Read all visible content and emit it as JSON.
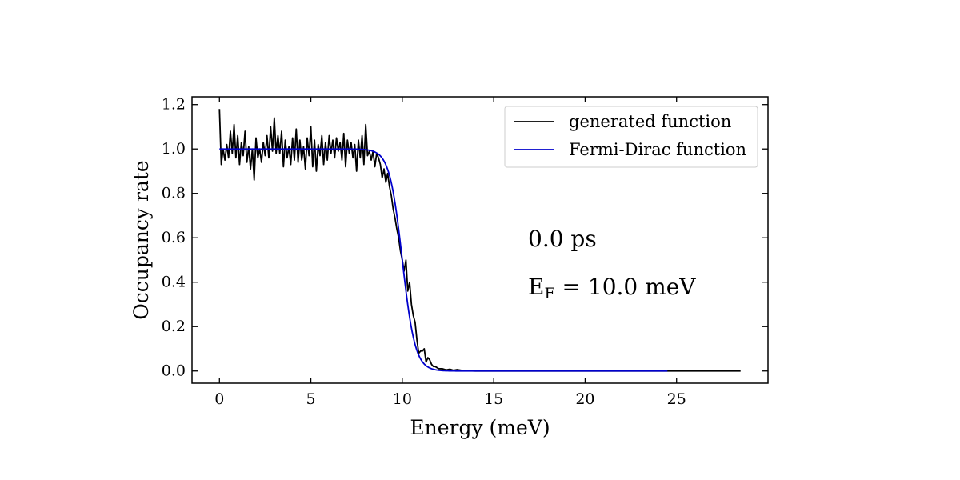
{
  "chart_data": {
    "type": "line",
    "title": "",
    "xlabel": "Energy (meV)",
    "ylabel": "Occupancy rate",
    "xlim": [
      -1.5,
      30
    ],
    "ylim": [
      -0.055,
      1.235
    ],
    "xticks": [
      0,
      5,
      10,
      15,
      20,
      25
    ],
    "yticks": [
      0.0,
      0.2,
      0.4,
      0.6,
      0.8,
      1.0,
      1.2
    ],
    "xtick_labels": [
      "0",
      "5",
      "10",
      "15",
      "20",
      "25"
    ],
    "ytick_labels": [
      "0.0",
      "0.2",
      "0.4",
      "0.6",
      "0.8",
      "1.0",
      "1.2"
    ],
    "grid": false,
    "legend_position": "top-right",
    "series": [
      {
        "name": "generated function",
        "color": "#000000",
        "points": [
          [
            0.0,
            1.18
          ],
          [
            0.1,
            0.93
          ],
          [
            0.2,
            1.0
          ],
          [
            0.3,
            0.95
          ],
          [
            0.4,
            1.02
          ],
          [
            0.5,
            0.96
          ],
          [
            0.6,
            1.08
          ],
          [
            0.7,
            0.98
          ],
          [
            0.8,
            1.11
          ],
          [
            0.9,
            0.96
          ],
          [
            1.0,
            1.06
          ],
          [
            1.1,
            0.93
          ],
          [
            1.2,
            1.03
          ],
          [
            1.3,
            0.97
          ],
          [
            1.4,
            1.08
          ],
          [
            1.5,
            0.94
          ],
          [
            1.6,
            1.01
          ],
          [
            1.7,
            0.91
          ],
          [
            1.8,
            1.0
          ],
          [
            1.9,
            0.86
          ],
          [
            2.0,
            1.05
          ],
          [
            2.1,
            0.96
          ],
          [
            2.2,
            1.0
          ],
          [
            2.3,
            0.94
          ],
          [
            2.4,
            1.03
          ],
          [
            2.5,
            0.97
          ],
          [
            2.6,
            1.06
          ],
          [
            2.7,
            0.96
          ],
          [
            2.8,
            1.1
          ],
          [
            2.9,
            0.99
          ],
          [
            3.0,
            1.14
          ],
          [
            3.1,
            0.98
          ],
          [
            3.2,
            1.06
          ],
          [
            3.3,
            0.98
          ],
          [
            3.4,
            1.08
          ],
          [
            3.5,
            0.92
          ],
          [
            3.6,
            1.04
          ],
          [
            3.7,
            0.96
          ],
          [
            3.8,
            1.01
          ],
          [
            3.9,
            0.93
          ],
          [
            4.0,
            1.05
          ],
          [
            4.1,
            0.95
          ],
          [
            4.2,
            1.09
          ],
          [
            4.3,
            0.94
          ],
          [
            4.4,
            1.04
          ],
          [
            4.5,
            0.95
          ],
          [
            4.6,
            1.01
          ],
          [
            4.7,
            0.91
          ],
          [
            4.8,
            1.05
          ],
          [
            4.9,
            0.97
          ],
          [
            5.0,
            1.1
          ],
          [
            5.1,
            0.92
          ],
          [
            5.2,
            1.04
          ],
          [
            5.3,
            0.9
          ],
          [
            5.4,
            1.02
          ],
          [
            5.5,
            0.97
          ],
          [
            5.6,
            1.06
          ],
          [
            5.7,
            0.93
          ],
          [
            5.8,
            1.03
          ],
          [
            5.9,
            0.95
          ],
          [
            6.0,
            1.06
          ],
          [
            6.1,
            0.98
          ],
          [
            6.2,
            1.04
          ],
          [
            6.3,
            0.96
          ],
          [
            6.4,
            1.05
          ],
          [
            6.5,
            0.99
          ],
          [
            6.6,
            1.03
          ],
          [
            6.7,
            0.95
          ],
          [
            6.8,
            1.07
          ],
          [
            6.9,
            0.92
          ],
          [
            7.0,
            1.04
          ],
          [
            7.1,
            0.98
          ],
          [
            7.2,
            1.03
          ],
          [
            7.3,
            0.96
          ],
          [
            7.4,
            1.02
          ],
          [
            7.5,
            0.9
          ],
          [
            7.6,
            1.04
          ],
          [
            7.7,
            0.96
          ],
          [
            7.8,
            1.06
          ],
          [
            7.9,
            0.93
          ],
          [
            8.0,
            1.11
          ],
          [
            8.1,
            0.97
          ],
          [
            8.2,
            0.99
          ],
          [
            8.3,
            0.95
          ],
          [
            8.4,
            0.99
          ],
          [
            8.5,
            0.92
          ],
          [
            8.6,
            0.98
          ],
          [
            8.7,
            0.96
          ],
          [
            8.8,
            0.93
          ],
          [
            8.9,
            0.87
          ],
          [
            9.0,
            0.91
          ],
          [
            9.1,
            0.85
          ],
          [
            9.2,
            0.89
          ],
          [
            9.3,
            0.83
          ],
          [
            9.4,
            0.79
          ],
          [
            9.5,
            0.73
          ],
          [
            9.6,
            0.69
          ],
          [
            9.7,
            0.64
          ],
          [
            9.8,
            0.6
          ],
          [
            9.9,
            0.54
          ],
          [
            10.0,
            0.5
          ],
          [
            10.1,
            0.45
          ],
          [
            10.2,
            0.5
          ],
          [
            10.3,
            0.36
          ],
          [
            10.4,
            0.4
          ],
          [
            10.5,
            0.3
          ],
          [
            10.6,
            0.25
          ],
          [
            10.7,
            0.22
          ],
          [
            10.8,
            0.14
          ],
          [
            10.9,
            0.08
          ],
          [
            11.0,
            0.09
          ],
          [
            11.1,
            0.09
          ],
          [
            11.2,
            0.1
          ],
          [
            11.3,
            0.04
          ],
          [
            11.4,
            0.06
          ],
          [
            11.5,
            0.05
          ],
          [
            11.6,
            0.03
          ],
          [
            11.7,
            0.02
          ],
          [
            11.8,
            0.02
          ],
          [
            12.0,
            0.01
          ],
          [
            12.2,
            0.01
          ],
          [
            12.4,
            0.005
          ],
          [
            12.6,
            0.008
          ],
          [
            12.8,
            0.003
          ],
          [
            13.0,
            0.006
          ],
          [
            13.3,
            0.002
          ],
          [
            14.0,
            0.0
          ],
          [
            18.0,
            0.0
          ],
          [
            22.0,
            0.0
          ],
          [
            26.0,
            0.0
          ],
          [
            28.5,
            0.0
          ]
        ]
      },
      {
        "name": "Fermi-Dirac function",
        "color": "#0000cc",
        "model": "fermi-dirac",
        "fermi_energy": 10.0,
        "kT": 0.35,
        "x_range": [
          0.0,
          24.5
        ]
      }
    ],
    "annotations": {
      "time": "0.0 ps",
      "fermi_main": "E",
      "fermi_sub": "F",
      "fermi_value": " = 10.0 meV"
    }
  }
}
